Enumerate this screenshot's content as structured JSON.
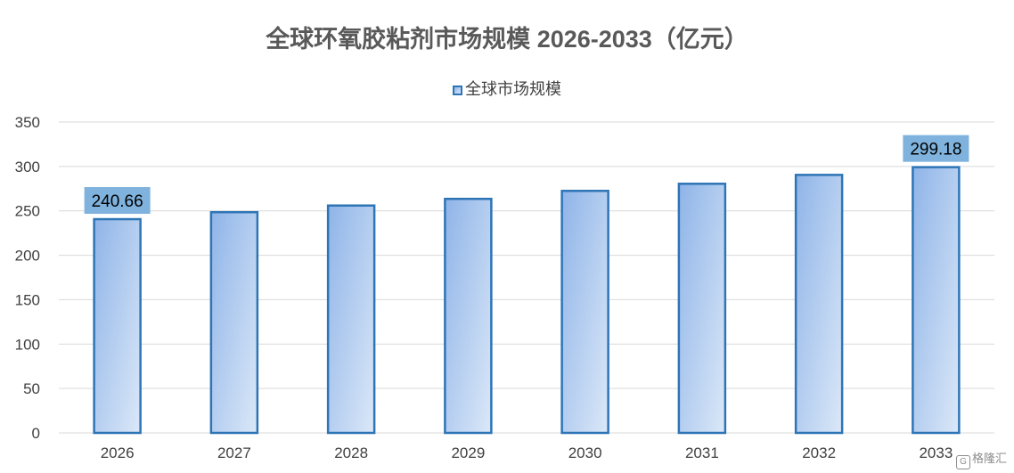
{
  "chart_data": {
    "type": "bar",
    "title": "全球环氧胶粘剂市场规模 2026-2033（亿元）",
    "categories": [
      "2026",
      "2027",
      "2028",
      "2029",
      "2030",
      "2031",
      "2032",
      "2033"
    ],
    "series": [
      {
        "name": "全球市场规模",
        "values": [
          240.66,
          248.5,
          256.0,
          263.5,
          272.5,
          280.5,
          290.5,
          299.18
        ],
        "color": "#2e75b6"
      }
    ],
    "data_labels": [
      {
        "index": 0,
        "text": "240.66"
      },
      {
        "index": 7,
        "text": "299.18"
      }
    ],
    "ylim": [
      0,
      350
    ],
    "yticks": [
      0,
      50,
      100,
      150,
      200,
      250,
      300,
      350
    ],
    "grid": true,
    "legend_position": "top",
    "xlabel": "",
    "ylabel": ""
  },
  "watermark": {
    "icon": "gelonghui-logo-icon",
    "text": "格隆汇"
  },
  "colors": {
    "bar_border": "#2e75b6",
    "bar_fill_start": "#8fb4e8",
    "bar_fill_end": "#dbe8f8",
    "label_background": "#7fb3de",
    "grid": "#d9d9d9",
    "axis_text": "#404040"
  }
}
